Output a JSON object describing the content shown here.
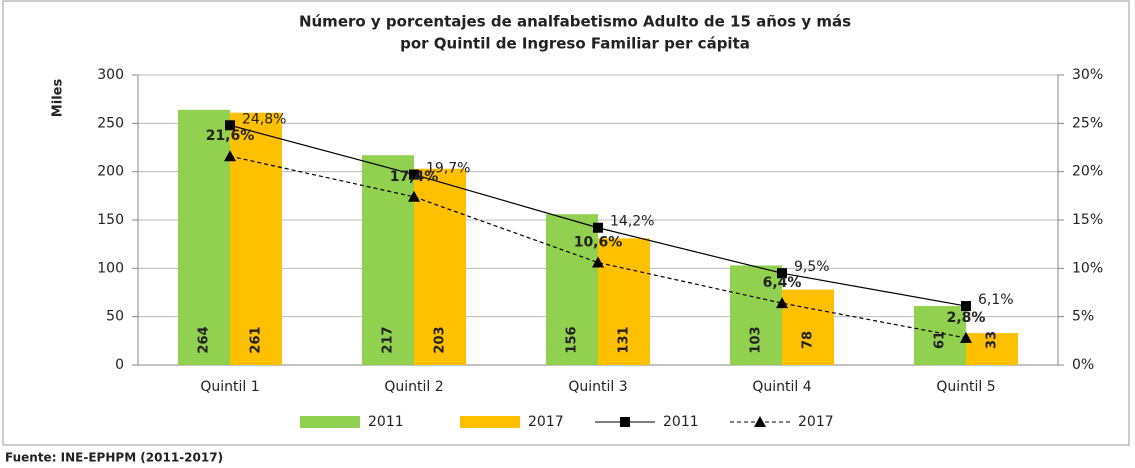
{
  "chart_data": {
    "type": "bar",
    "title": [
      "Número y porcentajes de analfabetismo Adulto de 15 años y más",
      "por Quintil de Ingreso Familiar per cápita"
    ],
    "ylabel": "Miles",
    "source": "Fuente: INE-EPHPM (2011-2017)",
    "categories": [
      "Quintil 1",
      "Quintil 2",
      "Quintil 3",
      "Quintil 4",
      "Quintil 5"
    ],
    "series": [
      {
        "name": "2011",
        "type": "bar",
        "color": "#92d050",
        "values": [
          264,
          217,
          156,
          103,
          61
        ]
      },
      {
        "name": "2017",
        "type": "bar",
        "color": "#ffc000",
        "values": [
          261,
          203,
          131,
          78,
          33
        ]
      },
      {
        "name": "2011",
        "type": "line",
        "axis": "y2",
        "color": "#000000",
        "marker": "square",
        "dashed": false,
        "values": [
          24.8,
          19.7,
          14.2,
          9.5,
          6.1
        ],
        "value_labels": [
          "24,8%",
          "19,7%",
          "14,2%",
          "9,5%",
          "6,1%"
        ]
      },
      {
        "name": "2017",
        "type": "line",
        "axis": "y2",
        "color": "#000000",
        "marker": "triangle",
        "dashed": true,
        "values": [
          21.6,
          17.4,
          10.6,
          6.4,
          2.8
        ],
        "value_labels": [
          "21,6%",
          "17,4%",
          "10,6%",
          "6,4%",
          "2,8%"
        ]
      }
    ],
    "ylim": [
      0,
      300
    ],
    "yticks": [
      0,
      50,
      100,
      150,
      200,
      250,
      300
    ],
    "y2lim": [
      0,
      30
    ],
    "y2ticks": [
      {
        "value": 0,
        "label": "0%"
      },
      {
        "value": 5,
        "label": "5%"
      },
      {
        "value": 10,
        "label": "10%"
      },
      {
        "value": 15,
        "label": "15%"
      },
      {
        "value": 20,
        "label": "20%"
      },
      {
        "value": 25,
        "label": "25%"
      },
      {
        "value": 30,
        "label": "30%"
      }
    ],
    "grid": true,
    "legend": "bottom"
  }
}
